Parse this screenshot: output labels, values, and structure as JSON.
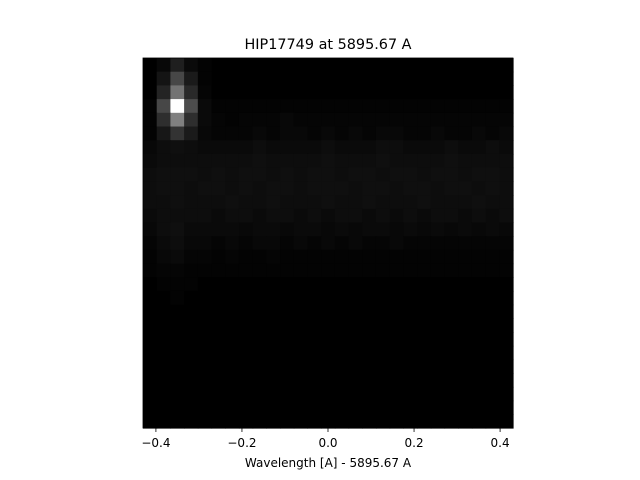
{
  "chart_data": {
    "type": "heatmap",
    "title": "HIP17749 at 5895.67 A",
    "xlabel": "Wavelength [A] - 5895.67 A",
    "ylabel": "",
    "xlim": [
      -0.43,
      0.43
    ],
    "xticks": [
      -0.4,
      -0.2,
      0.0,
      0.2,
      0.4
    ],
    "xtick_labels": [
      "−0.4",
      "−0.2",
      "0.0",
      "0.2",
      "0.4"
    ],
    "grid": false,
    "colormap": "gray",
    "columns": 27,
    "rows": 27,
    "intensity_rows": [
      [
        0.0,
        0.03,
        0.12,
        0.04,
        0.01,
        0.0,
        0.0,
        0.0,
        0.0,
        0.0,
        0.0,
        0.0,
        0.0,
        0.0,
        0.0,
        0.0,
        0.0,
        0.0,
        0.0,
        0.0,
        0.0,
        0.0,
        0.0,
        0.0,
        0.0,
        0.0,
        0.0
      ],
      [
        0.0,
        0.08,
        0.28,
        0.1,
        0.01,
        0.0,
        0.0,
        0.0,
        0.0,
        0.0,
        0.0,
        0.0,
        0.0,
        0.0,
        0.0,
        0.0,
        0.0,
        0.0,
        0.0,
        0.0,
        0.0,
        0.0,
        0.0,
        0.0,
        0.0,
        0.0,
        0.0
      ],
      [
        0.0,
        0.14,
        0.45,
        0.16,
        0.02,
        0.0,
        0.0,
        0.0,
        0.0,
        0.0,
        0.0,
        0.0,
        0.0,
        0.0,
        0.0,
        0.0,
        0.0,
        0.0,
        0.0,
        0.0,
        0.0,
        0.0,
        0.0,
        0.0,
        0.0,
        0.0,
        0.0
      ],
      [
        0.01,
        0.28,
        1.0,
        0.3,
        0.04,
        0.01,
        0.01,
        0.01,
        0.01,
        0.01,
        0.01,
        0.01,
        0.01,
        0.01,
        0.01,
        0.01,
        0.01,
        0.01,
        0.01,
        0.01,
        0.01,
        0.01,
        0.01,
        0.01,
        0.01,
        0.01,
        0.01
      ],
      [
        0.01,
        0.18,
        0.5,
        0.18,
        0.04,
        0.02,
        0.01,
        0.02,
        0.02,
        0.02,
        0.03,
        0.02,
        0.02,
        0.02,
        0.02,
        0.02,
        0.02,
        0.02,
        0.02,
        0.02,
        0.02,
        0.02,
        0.02,
        0.02,
        0.02,
        0.02,
        0.02
      ],
      [
        0.01,
        0.09,
        0.2,
        0.1,
        0.03,
        0.02,
        0.02,
        0.02,
        0.03,
        0.02,
        0.03,
        0.03,
        0.02,
        0.03,
        0.02,
        0.03,
        0.02,
        0.03,
        0.03,
        0.02,
        0.02,
        0.03,
        0.02,
        0.02,
        0.03,
        0.02,
        0.03
      ],
      [
        0.03,
        0.05,
        0.06,
        0.05,
        0.04,
        0.04,
        0.04,
        0.04,
        0.05,
        0.04,
        0.04,
        0.04,
        0.04,
        0.05,
        0.04,
        0.04,
        0.04,
        0.05,
        0.05,
        0.04,
        0.04,
        0.04,
        0.05,
        0.04,
        0.04,
        0.05,
        0.04
      ],
      [
        0.04,
        0.05,
        0.05,
        0.05,
        0.05,
        0.05,
        0.05,
        0.05,
        0.06,
        0.05,
        0.05,
        0.05,
        0.05,
        0.06,
        0.05,
        0.05,
        0.05,
        0.06,
        0.05,
        0.05,
        0.05,
        0.05,
        0.06,
        0.05,
        0.05,
        0.05,
        0.05
      ],
      [
        0.05,
        0.06,
        0.06,
        0.06,
        0.05,
        0.06,
        0.05,
        0.06,
        0.06,
        0.05,
        0.06,
        0.05,
        0.06,
        0.06,
        0.05,
        0.06,
        0.06,
        0.05,
        0.06,
        0.06,
        0.05,
        0.06,
        0.06,
        0.05,
        0.06,
        0.06,
        0.05
      ],
      [
        0.05,
        0.06,
        0.06,
        0.05,
        0.06,
        0.06,
        0.05,
        0.06,
        0.05,
        0.06,
        0.06,
        0.05,
        0.06,
        0.06,
        0.06,
        0.05,
        0.06,
        0.06,
        0.05,
        0.06,
        0.06,
        0.05,
        0.06,
        0.06,
        0.05,
        0.06,
        0.05
      ],
      [
        0.05,
        0.05,
        0.06,
        0.05,
        0.05,
        0.05,
        0.06,
        0.05,
        0.05,
        0.06,
        0.05,
        0.05,
        0.05,
        0.06,
        0.05,
        0.05,
        0.06,
        0.05,
        0.05,
        0.05,
        0.06,
        0.05,
        0.05,
        0.05,
        0.06,
        0.05,
        0.05
      ],
      [
        0.04,
        0.05,
        0.05,
        0.05,
        0.05,
        0.04,
        0.05,
        0.05,
        0.04,
        0.05,
        0.05,
        0.04,
        0.05,
        0.04,
        0.05,
        0.05,
        0.04,
        0.05,
        0.04,
        0.05,
        0.04,
        0.05,
        0.05,
        0.04,
        0.05,
        0.04,
        0.05
      ],
      [
        0.03,
        0.05,
        0.06,
        0.04,
        0.04,
        0.04,
        0.04,
        0.03,
        0.04,
        0.04,
        0.03,
        0.04,
        0.04,
        0.03,
        0.04,
        0.03,
        0.04,
        0.04,
        0.03,
        0.04,
        0.03,
        0.04,
        0.03,
        0.04,
        0.03,
        0.04,
        0.03
      ],
      [
        0.02,
        0.04,
        0.05,
        0.03,
        0.03,
        0.02,
        0.03,
        0.02,
        0.03,
        0.03,
        0.02,
        0.03,
        0.02,
        0.03,
        0.02,
        0.03,
        0.02,
        0.02,
        0.03,
        0.02,
        0.02,
        0.02,
        0.02,
        0.02,
        0.02,
        0.02,
        0.02
      ],
      [
        0.01,
        0.03,
        0.04,
        0.02,
        0.02,
        0.01,
        0.02,
        0.01,
        0.01,
        0.02,
        0.01,
        0.01,
        0.01,
        0.01,
        0.01,
        0.01,
        0.01,
        0.01,
        0.01,
        0.01,
        0.01,
        0.01,
        0.01,
        0.01,
        0.01,
        0.01,
        0.01
      ],
      [
        0.01,
        0.02,
        0.02,
        0.01,
        0.01,
        0.01,
        0.01,
        0.01,
        0.01,
        0.01,
        0.01,
        0.01,
        0.01,
        0.01,
        0.01,
        0.01,
        0.01,
        0.01,
        0.01,
        0.01,
        0.01,
        0.01,
        0.01,
        0.01,
        0.01,
        0.01,
        0.01
      ],
      [
        0.0,
        0.01,
        0.01,
        0.01,
        0.0,
        0.0,
        0.0,
        0.0,
        0.0,
        0.0,
        0.0,
        0.0,
        0.0,
        0.0,
        0.0,
        0.0,
        0.0,
        0.0,
        0.0,
        0.0,
        0.0,
        0.0,
        0.0,
        0.0,
        0.0,
        0.0,
        0.0
      ],
      [
        0.0,
        0.0,
        0.01,
        0.0,
        0.0,
        0.0,
        0.0,
        0.0,
        0.0,
        0.0,
        0.0,
        0.0,
        0.0,
        0.0,
        0.0,
        0.0,
        0.0,
        0.0,
        0.0,
        0.0,
        0.0,
        0.0,
        0.0,
        0.0,
        0.0,
        0.0,
        0.0
      ],
      [
        0.0,
        0.0,
        0.0,
        0.0,
        0.0,
        0.0,
        0.0,
        0.0,
        0.0,
        0.0,
        0.0,
        0.0,
        0.0,
        0.0,
        0.0,
        0.0,
        0.0,
        0.0,
        0.0,
        0.0,
        0.0,
        0.0,
        0.0,
        0.0,
        0.0,
        0.0,
        0.0
      ],
      [
        0.0,
        0.0,
        0.0,
        0.0,
        0.0,
        0.0,
        0.0,
        0.0,
        0.0,
        0.0,
        0.0,
        0.0,
        0.0,
        0.0,
        0.0,
        0.0,
        0.0,
        0.0,
        0.0,
        0.0,
        0.0,
        0.0,
        0.0,
        0.0,
        0.0,
        0.0,
        0.0
      ],
      [
        0.0,
        0.0,
        0.0,
        0.0,
        0.0,
        0.0,
        0.0,
        0.0,
        0.0,
        0.0,
        0.0,
        0.0,
        0.0,
        0.0,
        0.0,
        0.0,
        0.0,
        0.0,
        0.0,
        0.0,
        0.0,
        0.0,
        0.0,
        0.0,
        0.0,
        0.0,
        0.0
      ],
      [
        0.0,
        0.0,
        0.0,
        0.0,
        0.0,
        0.0,
        0.0,
        0.0,
        0.0,
        0.0,
        0.0,
        0.0,
        0.0,
        0.0,
        0.0,
        0.0,
        0.0,
        0.0,
        0.0,
        0.0,
        0.0,
        0.0,
        0.0,
        0.0,
        0.0,
        0.0,
        0.0
      ],
      [
        0.0,
        0.0,
        0.0,
        0.0,
        0.0,
        0.0,
        0.0,
        0.0,
        0.0,
        0.0,
        0.0,
        0.0,
        0.0,
        0.0,
        0.0,
        0.0,
        0.0,
        0.0,
        0.0,
        0.0,
        0.0,
        0.0,
        0.0,
        0.0,
        0.0,
        0.0,
        0.0
      ],
      [
        0.0,
        0.0,
        0.0,
        0.0,
        0.0,
        0.0,
        0.0,
        0.0,
        0.0,
        0.0,
        0.0,
        0.0,
        0.0,
        0.0,
        0.0,
        0.0,
        0.0,
        0.0,
        0.0,
        0.0,
        0.0,
        0.0,
        0.0,
        0.0,
        0.0,
        0.0,
        0.0
      ],
      [
        0.0,
        0.0,
        0.0,
        0.0,
        0.0,
        0.0,
        0.0,
        0.0,
        0.0,
        0.0,
        0.0,
        0.0,
        0.0,
        0.0,
        0.0,
        0.0,
        0.0,
        0.0,
        0.0,
        0.0,
        0.0,
        0.0,
        0.0,
        0.0,
        0.0,
        0.0,
        0.0
      ],
      [
        0.0,
        0.0,
        0.0,
        0.0,
        0.0,
        0.0,
        0.0,
        0.0,
        0.0,
        0.0,
        0.0,
        0.0,
        0.0,
        0.0,
        0.0,
        0.0,
        0.0,
        0.0,
        0.0,
        0.0,
        0.0,
        0.0,
        0.0,
        0.0,
        0.0,
        0.0,
        0.0
      ],
      [
        0.0,
        0.0,
        0.0,
        0.0,
        0.0,
        0.0,
        0.0,
        0.0,
        0.0,
        0.0,
        0.0,
        0.0,
        0.0,
        0.0,
        0.0,
        0.0,
        0.0,
        0.0,
        0.0,
        0.0,
        0.0,
        0.0,
        0.0,
        0.0,
        0.0,
        0.0,
        0.0
      ]
    ]
  }
}
